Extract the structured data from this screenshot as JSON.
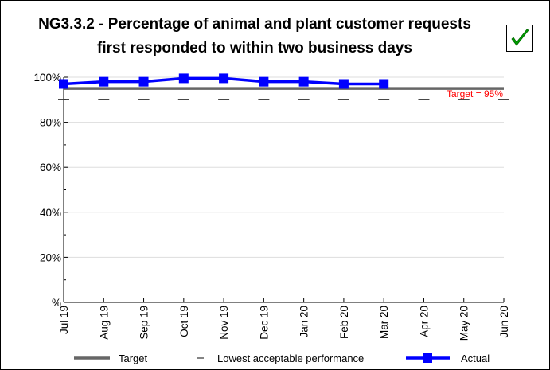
{
  "header": {
    "title_line1": "NG3.3.2 - Percentage of animal and plant customer requests",
    "title_line2": "first responded to within two business days",
    "status_icon": "check-mark-icon",
    "status_color": "#00a000"
  },
  "chart_data": {
    "type": "line",
    "categories": [
      "Jul 19",
      "Aug 19",
      "Sep 19",
      "Oct 19",
      "Nov 19",
      "Dec 19",
      "Jan 20",
      "Feb 20",
      "Mar 20",
      "Apr 20",
      "May 20",
      "Jun 20"
    ],
    "ylim": [
      0,
      100
    ],
    "yticks": [
      0,
      20,
      40,
      60,
      80,
      100
    ],
    "ytick_labels": [
      "%",
      "20%",
      "40%",
      "60%",
      "80%",
      "100%"
    ],
    "series": [
      {
        "name": "Target",
        "color": "#666666",
        "values": [
          95,
          95,
          95,
          95,
          95,
          95,
          95,
          95,
          95,
          95,
          95,
          95
        ]
      },
      {
        "name": "Lowest acceptable performance",
        "color": "#333333",
        "values": [
          90,
          90,
          90,
          90,
          90,
          90,
          90,
          90,
          90,
          90,
          90,
          90
        ]
      },
      {
        "name": "Actual",
        "color": "#0000ff",
        "values": [
          97,
          98,
          98,
          99.5,
          99.5,
          98,
          98,
          97,
          97,
          null,
          null,
          null
        ]
      }
    ],
    "annotation": "Target = 95%",
    "annotation_color": "#ff0000",
    "grid": true,
    "legend_position": "bottom"
  }
}
